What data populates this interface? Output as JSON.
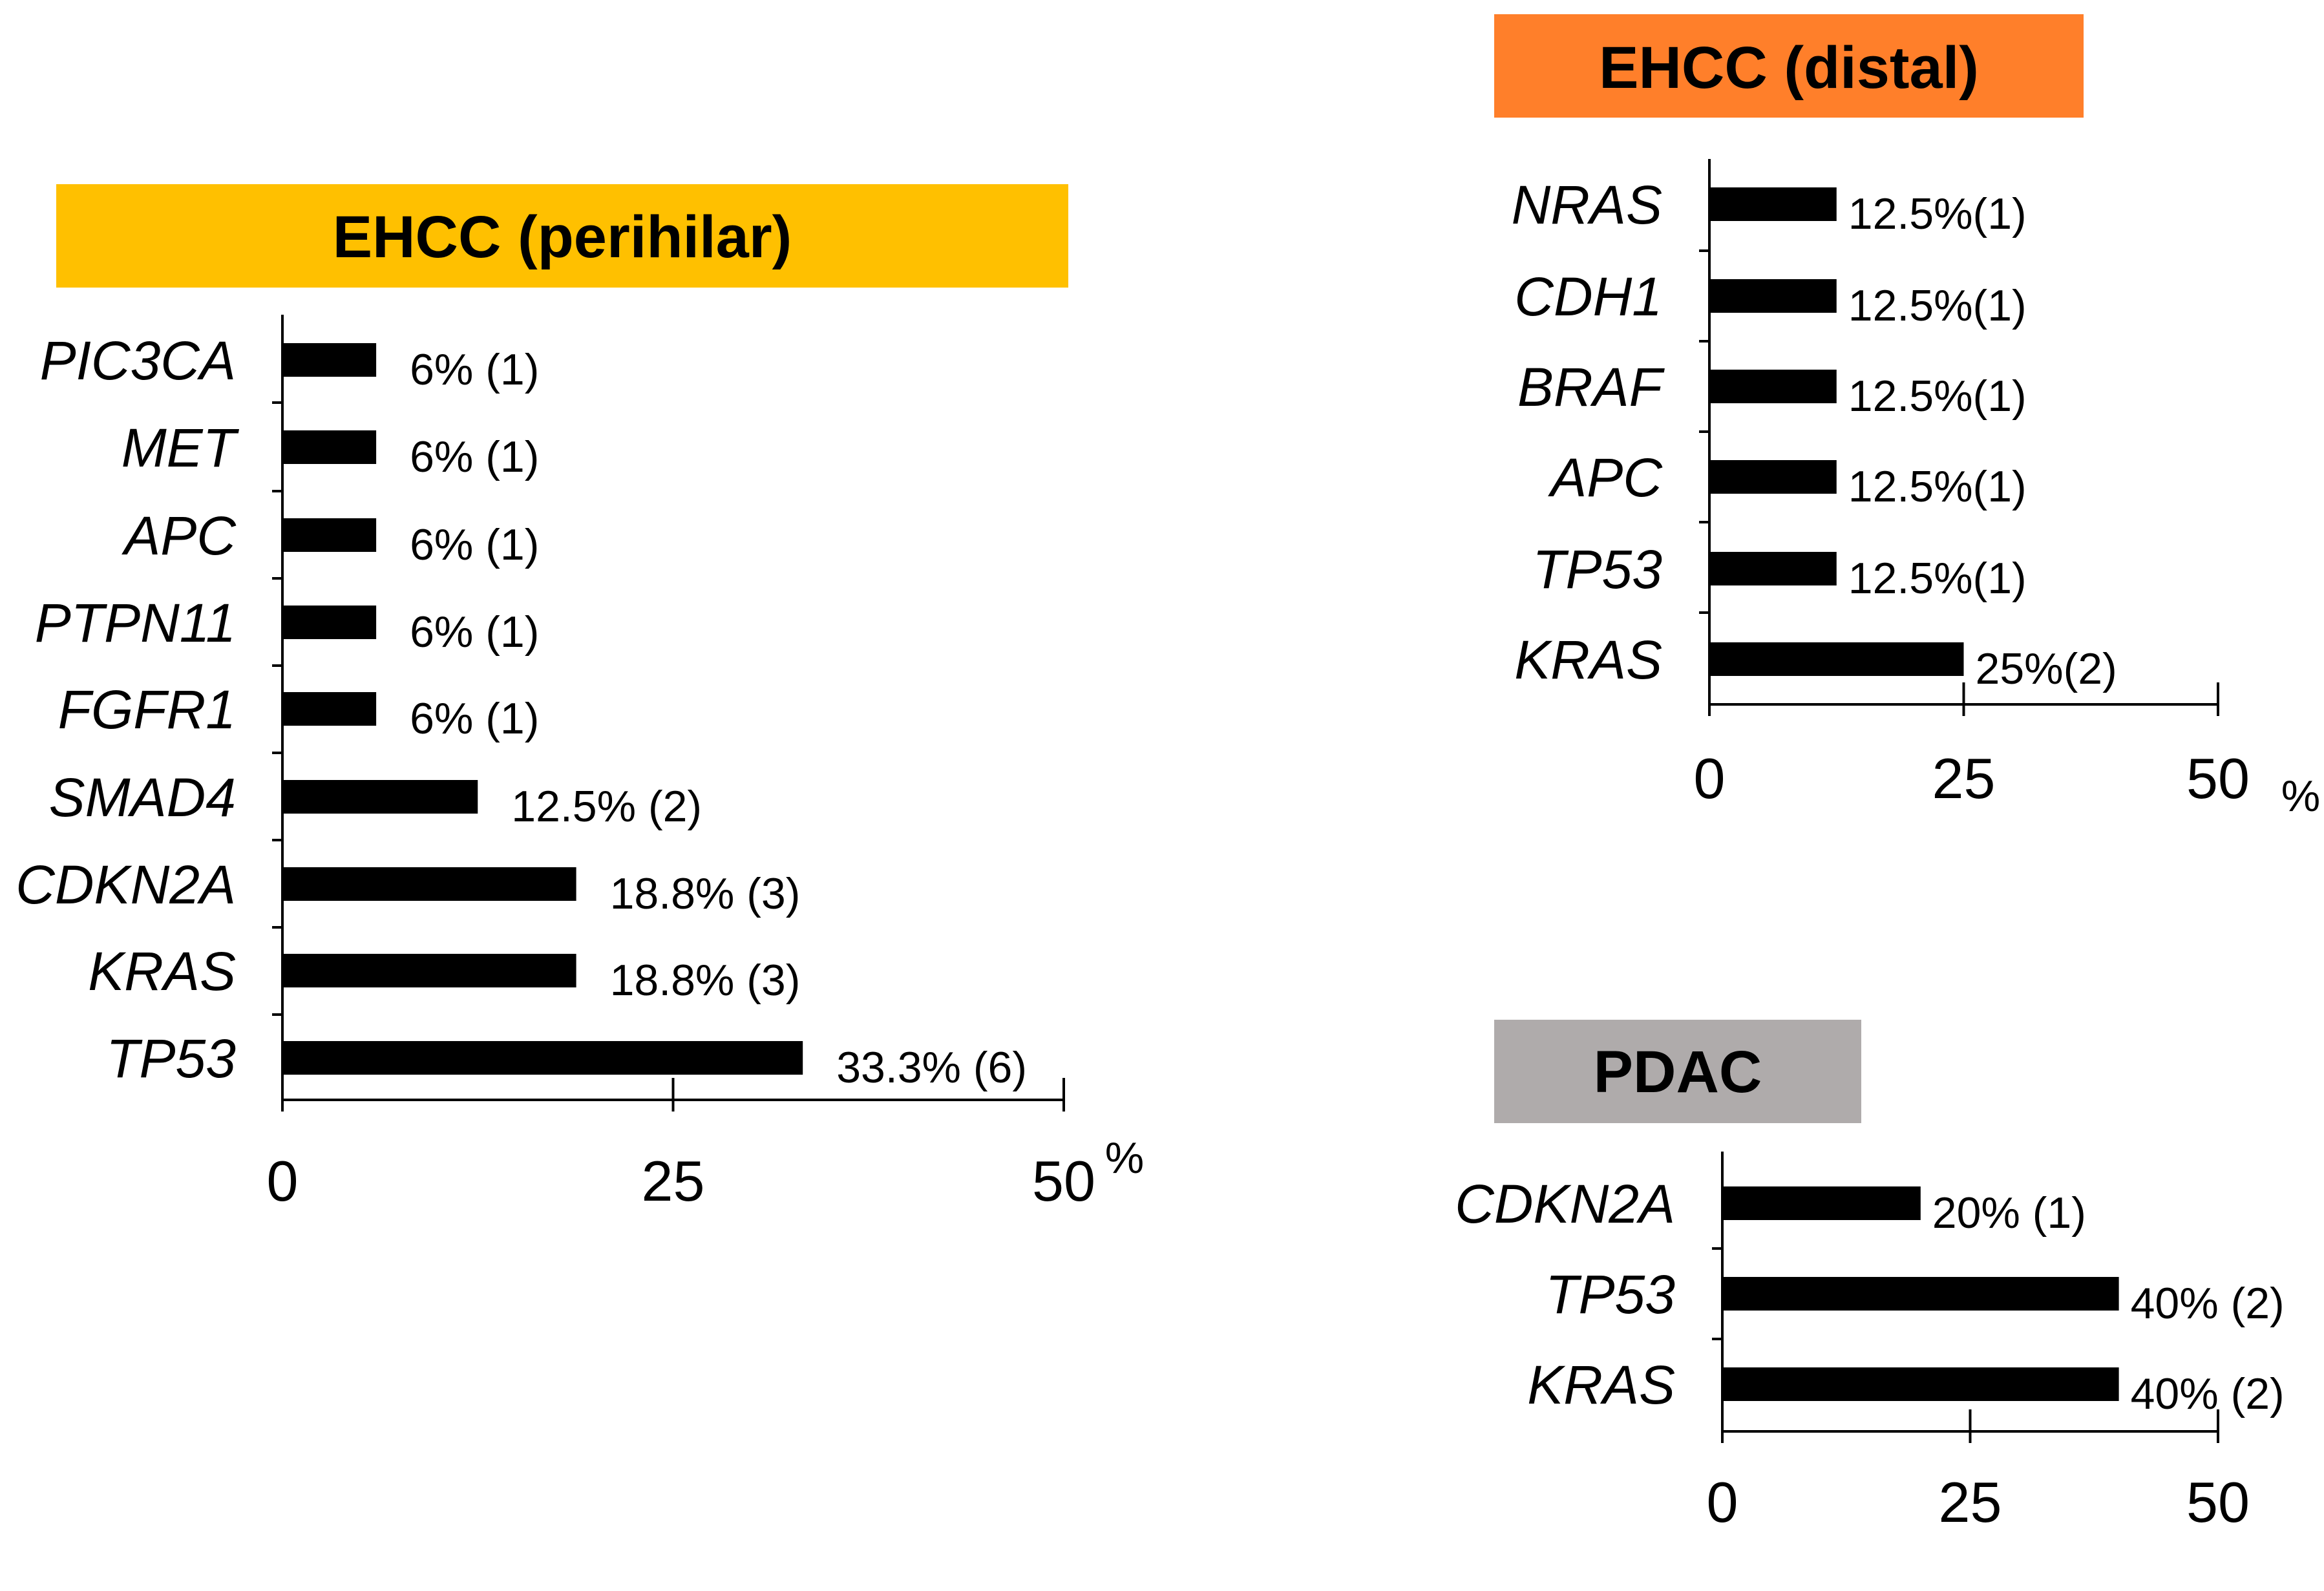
{
  "chart_data": [
    {
      "type": "bar",
      "orientation": "horizontal",
      "title": "EHCC (perihilar)",
      "title_color": "#FFC000",
      "categories": [
        "PIC3CA",
        "MET",
        "APC",
        "PTPN11",
        "FGFR1",
        "SMAD4",
        "CDKN2A",
        "KRAS",
        "TP53"
      ],
      "values": [
        6,
        6,
        6,
        6,
        6,
        12.5,
        18.8,
        18.8,
        33.3
      ],
      "data_labels": [
        "6% (1)",
        "6% (1)",
        "6% (1)",
        "6% (1)",
        "6% (1)",
        "12.5% (2)",
        "18.8% (3)",
        "18.8% (3)",
        "33.3% (6)"
      ],
      "xlim": [
        0,
        50
      ],
      "xticks": [
        "0",
        "25",
        "50"
      ],
      "unit": "%",
      "bar_color": "#000000"
    },
    {
      "type": "bar",
      "orientation": "horizontal",
      "title": "EHCC (distal)",
      "title_color": "#FF7F2A",
      "categories": [
        "NRAS",
        "CDH1",
        "BRAF",
        "APC",
        "TP53",
        "KRAS"
      ],
      "values": [
        12.5,
        12.5,
        12.5,
        12.5,
        12.5,
        25
      ],
      "data_labels": [
        "12.5%(1)",
        "12.5%(1)",
        "12.5%(1)",
        "12.5%(1)",
        "12.5%(1)",
        "25%(2)"
      ],
      "xlim": [
        0,
        50
      ],
      "xticks": [
        "0",
        "25",
        "50"
      ],
      "unit": "%",
      "bar_color": "#000000"
    },
    {
      "type": "bar",
      "orientation": "horizontal",
      "title": "PDAC",
      "title_color": "#AFABAB",
      "categories": [
        "CDKN2A",
        "TP53",
        "KRAS"
      ],
      "values": [
        20,
        40,
        40
      ],
      "data_labels": [
        "20% (1)",
        "40% (2)",
        "40% (2)"
      ],
      "xlim": [
        0,
        50
      ],
      "xticks": [
        "0",
        "25",
        "50"
      ],
      "unit": "",
      "bar_color": "#000000"
    }
  ]
}
